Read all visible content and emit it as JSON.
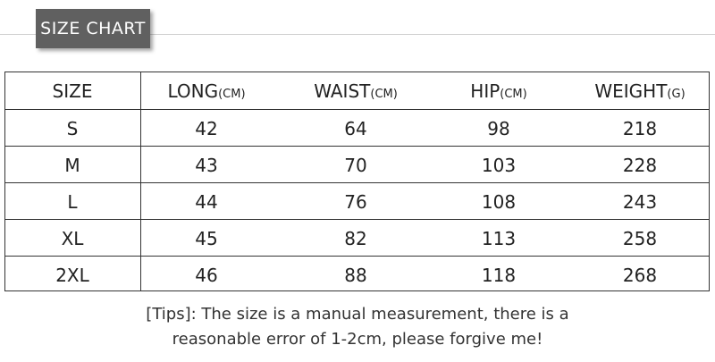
{
  "header": {
    "title": "SIZE CHART"
  },
  "table": {
    "columns": [
      {
        "label": "SIZE"
      },
      {
        "label": "LONG",
        "unit": "(CM)"
      },
      {
        "label": "WAIST",
        "unit": "(CM)"
      },
      {
        "label": "HIP",
        "unit": "(CM)"
      },
      {
        "label": "WEIGHT",
        "unit": "(G)"
      }
    ],
    "rows": [
      [
        "S",
        42,
        64,
        98,
        218
      ],
      [
        "M",
        43,
        70,
        103,
        228
      ],
      [
        "L",
        44,
        76,
        108,
        243
      ],
      [
        "XL",
        45,
        82,
        113,
        258
      ],
      [
        "2XL",
        46,
        88,
        118,
        268
      ]
    ]
  },
  "tips": [
    "[Tips]: The size is a manual measurement, there is a",
    "reasonable error of 1-2cm, please forgive me!"
  ]
}
